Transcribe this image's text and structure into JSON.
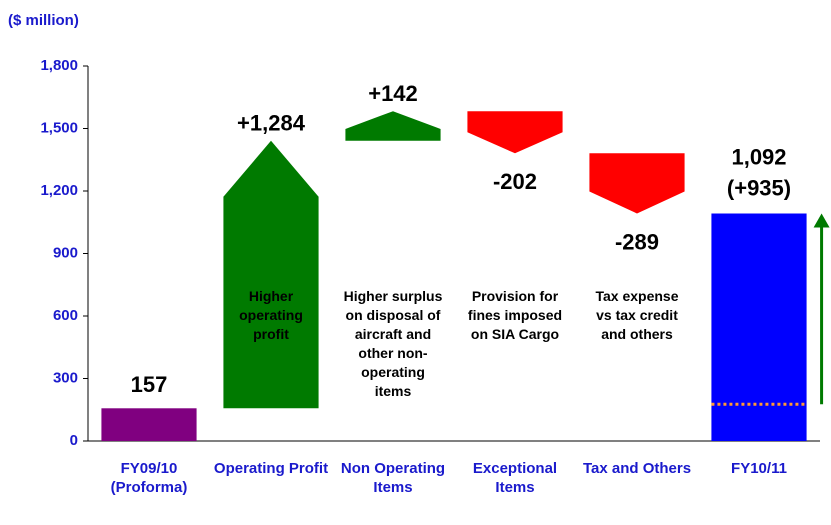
{
  "chart_data": {
    "type": "waterfall",
    "y_axis_label": "($ million)",
    "categories": [
      "FY09/10 (Proforma)",
      "Operating Profit",
      "Non Operating Items",
      "Exceptional Items",
      "Tax and Others",
      "FY10/11"
    ],
    "values": [
      157,
      1284,
      142,
      -202,
      -289,
      1092
    ],
    "value_labels": [
      "157",
      "+1,284",
      "+142",
      "-202",
      "-289",
      "1,092"
    ],
    "totals": [
      true,
      false,
      false,
      false,
      false,
      true
    ],
    "colors": [
      "#800080",
      "#007a00",
      "#007a00",
      "#ff0000",
      "#ff0000",
      "#0000ff"
    ],
    "descriptions": [
      null,
      "Higher operating profit",
      "Higher surplus on disposal of aircraft and other non-operating items",
      "Provision for fines imposed on SIA Cargo",
      "Tax expense vs tax credit and others",
      null
    ],
    "annotations": [
      {
        "text": "(+935)"
      }
    ],
    "ylim": [
      0,
      1800
    ],
    "yticks": [
      0,
      300,
      600,
      900,
      {
        "value": 1200,
        "label": "1,200"
      },
      {
        "value": 1500,
        "label": "1,500"
      },
      {
        "value": 1800,
        "label": "1,800"
      }
    ],
    "grid": false
  }
}
